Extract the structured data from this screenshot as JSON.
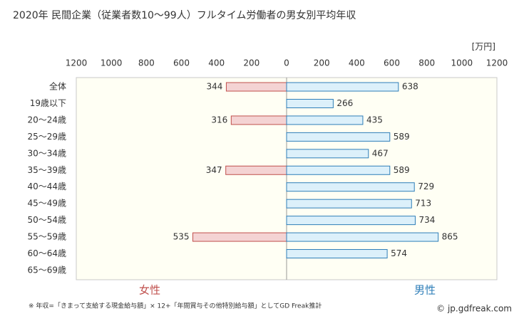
{
  "chart_data": {
    "type": "butterfly_bar",
    "title": "2020年 民間企業（従業者数10〜99人）フルタイム労働者の男女別平均年収",
    "unit": "[万円]",
    "categories": [
      "全体",
      "19歳以下",
      "20〜24歳",
      "25〜29歳",
      "30〜34歳",
      "35〜39歳",
      "40〜44歳",
      "45〜49歳",
      "50〜54歳",
      "55〜59歳",
      "60〜64歳",
      "65〜69歳"
    ],
    "series": [
      {
        "name": "女性",
        "color": "#f4d3d3",
        "stroke": "#c0504d",
        "label_color": "#c0504d",
        "values": [
          344,
          null,
          316,
          null,
          null,
          347,
          null,
          null,
          null,
          535,
          null,
          null
        ]
      },
      {
        "name": "男性",
        "color": "#dcf0fa",
        "stroke": "#2e7eb8",
        "label_color": "#2e7eb8",
        "values": [
          638,
          266,
          435,
          589,
          467,
          589,
          729,
          713,
          734,
          865,
          574,
          null
        ]
      }
    ],
    "xlim": [
      0,
      1200
    ],
    "xticks": [
      0,
      200,
      400,
      600,
      800,
      1000,
      1200
    ],
    "footnote": "※ 年収=「きまって支給する現金給与額」× 12+「年間賞与その他特別給与額」としてGD Freak推計",
    "source": "© jp.gdfreak.com"
  }
}
